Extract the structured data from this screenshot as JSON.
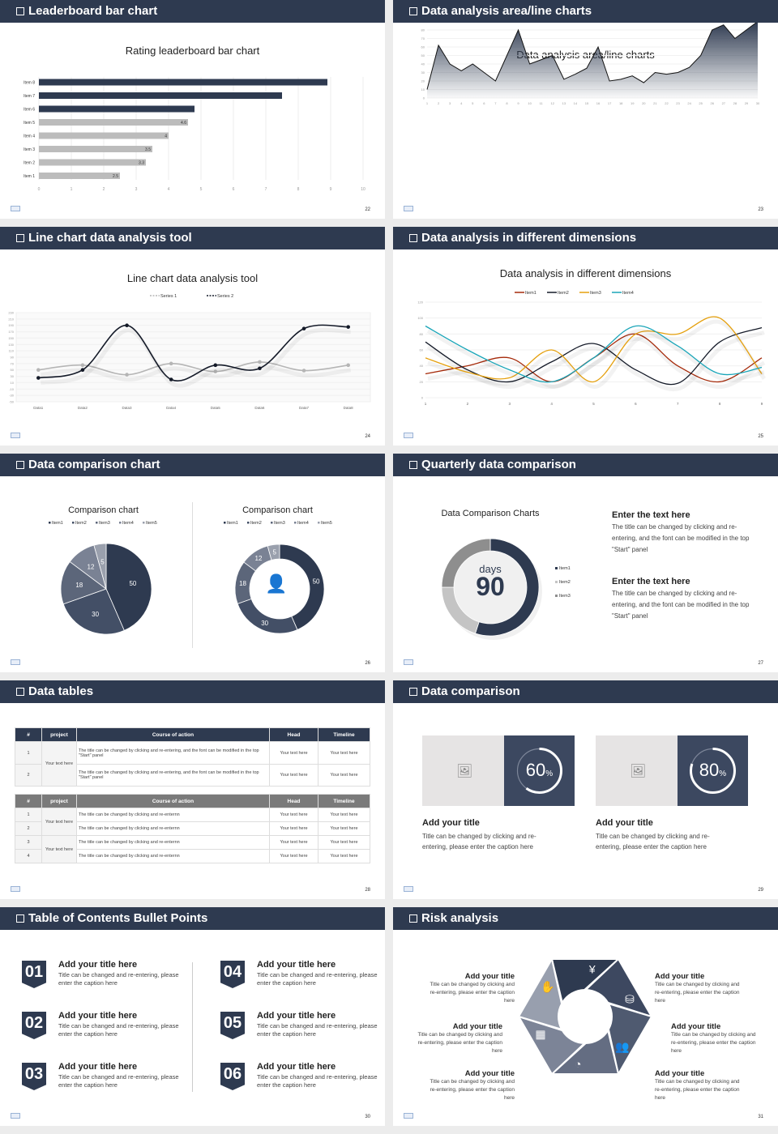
{
  "colors": {
    "navy": "#2e3a50",
    "gray": "#bcbcbc",
    "mid": "#7a7a7a"
  },
  "slides": [
    {
      "header": "Leaderboard bar chart",
      "page": "22"
    },
    {
      "header": "Data analysis area/line charts",
      "page": "23"
    },
    {
      "header": "Line chart data analysis tool",
      "page": "24"
    },
    {
      "header": "Data analysis in different dimensions",
      "page": "25"
    },
    {
      "header": "Data comparison chart",
      "page": "26"
    },
    {
      "header": "Quarterly data comparison",
      "page": "27"
    },
    {
      "header": "Data tables",
      "page": "28"
    },
    {
      "header": "Data comparison",
      "page": "29"
    },
    {
      "header": "Table of Contents Bullet Points",
      "page": "30"
    },
    {
      "header": "Risk analysis",
      "page": "31"
    }
  ],
  "chart_data": [
    {
      "type": "bar",
      "orientation": "horizontal",
      "title": "Rating leaderboard bar chart",
      "categories": [
        "Item 1",
        "Item 2",
        "Item 3",
        "Item 4",
        "Item 5",
        "Item 6",
        "Item 7",
        "Item 8"
      ],
      "values": [
        2.5,
        3.3,
        3.5,
        4,
        4.6,
        4.8,
        7.5,
        8.9
      ],
      "data_labels": [
        "2.5",
        "3.3",
        "3.5",
        "4",
        "4.6",
        "",
        "",
        ""
      ],
      "bar_colors": [
        "#bcbcbc",
        "#bcbcbc",
        "#bcbcbc",
        "#bcbcbc",
        "#bcbcbc",
        "#2e3a50",
        "#2e3a50",
        "#2e3a50"
      ],
      "xlim": [
        0,
        10
      ],
      "xticks": [
        "0",
        "1",
        "2",
        "3",
        "4",
        "5",
        "6",
        "7",
        "8",
        "9",
        "10"
      ],
      "grid": true
    },
    {
      "type": "area",
      "title": "Data analysis area/line charts",
      "x": [
        "1",
        "2",
        "3",
        "4",
        "5",
        "6",
        "7",
        "8",
        "9",
        "10",
        "11",
        "12",
        "13",
        "14",
        "15",
        "16",
        "17",
        "18",
        "19",
        "20",
        "21",
        "22",
        "23",
        "24",
        "25",
        "26",
        "27",
        "28",
        "29",
        "30"
      ],
      "values": [
        10,
        62,
        40,
        32,
        40,
        30,
        20,
        50,
        80,
        40,
        45,
        50,
        22,
        28,
        35,
        60,
        20,
        22,
        26,
        18,
        30,
        28,
        30,
        36,
        50,
        80,
        86,
        70,
        80,
        90
      ],
      "ylim": [
        0,
        100
      ],
      "yticks": [
        "0",
        "10",
        "20",
        "30",
        "40",
        "50",
        "60",
        "70",
        "80",
        "90",
        "100"
      ],
      "grid": true
    },
    {
      "type": "line",
      "title": "Line chart data analysis tool",
      "categories": [
        "Data1",
        "Data2",
        "Data3",
        "Data4",
        "Data5",
        "Data6",
        "Data7",
        "Data8"
      ],
      "series": [
        {
          "name": "Series 1",
          "values": [
            50,
            65,
            35,
            70,
            45,
            75,
            48,
            65
          ],
          "color": "#b5b5b5"
        },
        {
          "name": "Series 2",
          "values": [
            25,
            50,
            190,
            20,
            65,
            55,
            180,
            185
          ],
          "color": "#141a28"
        }
      ],
      "ylim": [
        -50,
        230
      ],
      "yticks": [
        "230",
        "210",
        "190",
        "170",
        "150",
        "130",
        "110",
        "90",
        "70",
        "50",
        "30",
        "10",
        "-10",
        "-30",
        "-50"
      ],
      "legend": "top",
      "grid": true
    },
    {
      "type": "line",
      "title": "Data analysis in different dimensions",
      "categories": [
        "1",
        "2",
        "3",
        "4",
        "5",
        "6",
        "7",
        "8",
        "9"
      ],
      "series": [
        {
          "name": "Item1",
          "values": [
            30,
            40,
            50,
            20,
            50,
            80,
            40,
            20,
            50
          ],
          "color": "#a52a0a"
        },
        {
          "name": "Item2",
          "values": [
            70,
            35,
            20,
            45,
            68,
            35,
            18,
            70,
            88
          ],
          "color": "#141a28"
        },
        {
          "name": "Item3",
          "values": [
            50,
            32,
            25,
            60,
            20,
            80,
            80,
            100,
            30
          ],
          "color": "#e5a00e"
        },
        {
          "name": "Item4",
          "values": [
            90,
            60,
            35,
            20,
            50,
            90,
            65,
            30,
            38
          ],
          "color": "#1aa5b8"
        }
      ],
      "ylim": [
        0,
        120
      ],
      "yticks": [
        "0",
        "20",
        "40",
        "60",
        "80",
        "100",
        "120"
      ],
      "legend": "top",
      "grid": true
    },
    {
      "type": "pie",
      "title": "Comparison chart",
      "labels": [
        "Item1",
        "Item2",
        "Item3",
        "Item4",
        "Item5"
      ],
      "values": [
        50,
        30,
        18,
        12,
        5
      ],
      "colors": [
        "#2e3a50",
        "#434f66",
        "#5c667a",
        "#7a8294",
        "#9aa0ad"
      ],
      "legend": "top"
    },
    {
      "type": "pie",
      "donut": true,
      "title": "Comparison chart",
      "labels": [
        "Item1",
        "Item2",
        "Item3",
        "Item4",
        "Item5"
      ],
      "values": [
        50,
        30,
        18,
        12,
        5
      ],
      "colors": [
        "#2e3a50",
        "#434f66",
        "#5c667a",
        "#7a8294",
        "#9aa0ad"
      ],
      "legend": "top",
      "center_icon": "customer-service-icon"
    },
    {
      "type": "pie",
      "donut": true,
      "title": "Data Comparison Charts",
      "labels": [
        "Item1",
        "Item2",
        "Item3"
      ],
      "values": [
        55,
        20,
        25
      ],
      "colors": [
        "#2e3a50",
        "#c4c4c4",
        "#8e8e8e"
      ],
      "center_label": "days",
      "center_value": "90",
      "legend": "right"
    }
  ],
  "quarterly": {
    "blocks": [
      {
        "title": "Enter the text here",
        "body": "The title can be changed by clicking and re-entering, and the font can be modified in the top \"Start\" panel"
      },
      {
        "title": "Enter the text here",
        "body": "The title can be changed by clicking and re-entering, and the font can be modified in the top \"Start\" panel"
      }
    ]
  },
  "tables": {
    "headers": [
      "#",
      "project",
      "Course of action",
      "Head",
      "Timeline"
    ],
    "t1": {
      "project": "Your text here",
      "rows": [
        {
          "n": "1",
          "action": "The title can be changed by clicking and re-entering, and the font can be modified in the top \"Start\" panel",
          "head": "Your text here",
          "time": "Your text here"
        },
        {
          "n": "2",
          "action": "The title can be changed by clicking and re-entering, and the font can be modified in the top \"Start\" panel",
          "head": "Your text here",
          "time": "Your text here"
        }
      ]
    },
    "t2": {
      "projects": [
        "Your text here",
        "Your text here"
      ],
      "rows": [
        {
          "n": "1",
          "action": "The title can be changed by clicking and re-enternn",
          "head": "Your text here",
          "time": "Your text here"
        },
        {
          "n": "2",
          "action": "The title can be changed by clicking and re-enternn",
          "head": "Your text here",
          "time": "Your text here"
        },
        {
          "n": "3",
          "action": "The title can be changed by clicking and re-enternn",
          "head": "Your text here",
          "time": "Your text here"
        },
        {
          "n": "4",
          "action": "The title can be changed by clicking and re-enternn",
          "head": "Your text here",
          "time": "Your text here"
        }
      ]
    }
  },
  "comparison": {
    "cards": [
      {
        "percent": 60,
        "value": "60",
        "unit": "%",
        "title": "Add your title",
        "caption": "Title can be changed by clicking and re-entering, please enter the caption here"
      },
      {
        "percent": 80,
        "value": "80",
        "unit": "%",
        "title": "Add your title",
        "caption": "Title can be changed by clicking and re-entering, please enter the caption here"
      }
    ]
  },
  "toc": {
    "items": [
      {
        "num": "01",
        "title": "Add your title here",
        "caption": "Title can be changed and re-entering, please enter the caption here"
      },
      {
        "num": "02",
        "title": "Add your title here",
        "caption": "Title can be changed and re-entering, please enter the caption here"
      },
      {
        "num": "03",
        "title": "Add your title here",
        "caption": "Title can be changed and re-entering, please enter the caption here"
      },
      {
        "num": "04",
        "title": "Add your title here",
        "caption": "Title can be changed and re-entering, please enter the caption here"
      },
      {
        "num": "05",
        "title": "Add your title here",
        "caption": "Title can be changed and re-entering, please enter the caption here"
      },
      {
        "num": "06",
        "title": "Add your title here",
        "caption": "Title can be changed and re-entering, please enter the caption here"
      }
    ]
  },
  "risk": {
    "items": [
      {
        "title": "Add your title",
        "caption": "Title can be changed by clicking and re-entering, please enter the caption here",
        "icon": "money-bag-icon"
      },
      {
        "title": "Add your title",
        "caption": "Title can be changed by clicking and re-entering, please enter the caption here",
        "icon": "coins-icon"
      },
      {
        "title": "Add your title",
        "caption": "Title can be changed by clicking and re-entering, please enter the caption here",
        "icon": "hand-money-icon"
      },
      {
        "title": "Add your title",
        "caption": "Title can be changed by clicking and re-entering, please enter the caption here",
        "icon": "users-icon"
      },
      {
        "title": "Add your title",
        "caption": "Title can be changed by clicking and re-entering, please enter the caption here",
        "icon": "building-icon"
      },
      {
        "title": "Add your title",
        "caption": "Title can be changed by clicking and re-entering, please enter the caption here",
        "icon": "pie-chart-icon"
      }
    ]
  }
}
